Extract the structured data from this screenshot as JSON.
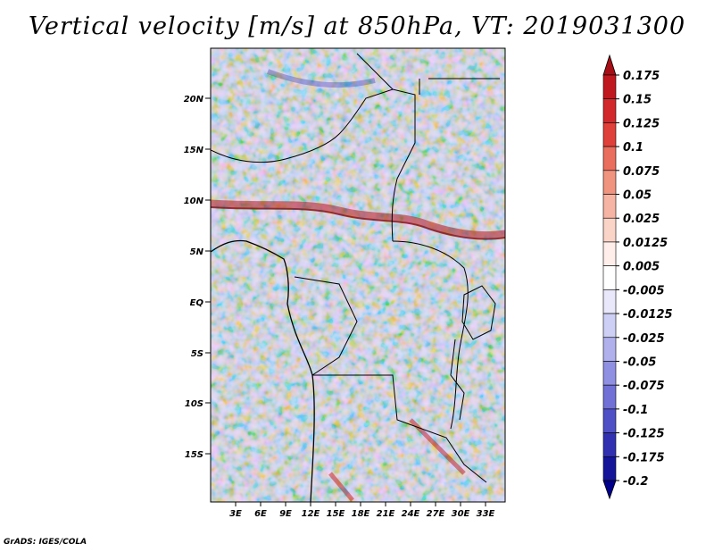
{
  "title": "Vertical velocity [m/s] at 850hPa, VT: 2019031300",
  "footer": "GrADS: IGES/COLA",
  "lat_labels": [
    "20N",
    "15N",
    "10N",
    "5N",
    "EQ",
    "5S",
    "10S",
    "15S"
  ],
  "lon_labels": [
    "3E",
    "6E",
    "9E",
    "12E",
    "15E",
    "18E",
    "21E",
    "24E",
    "27E",
    "30E",
    "33E"
  ],
  "colorbar": {
    "levels": [
      "0.175",
      "0.15",
      "0.125",
      "0.1",
      "0.075",
      "0.05",
      "0.025",
      "0.0125",
      "0.005",
      "-0.005",
      "-0.0125",
      "-0.025",
      "-0.05",
      "-0.075",
      "-0.1",
      "-0.125",
      "-0.175",
      "-0.2"
    ],
    "colors": [
      "#a50f15",
      "#c0181f",
      "#d2282c",
      "#e0403a",
      "#e96e5e",
      "#f0947f",
      "#f6b5a4",
      "#fbd4c8",
      "#ffeeea",
      "#ffffff",
      "#e8e8fa",
      "#cdd0f4",
      "#b0b0ec",
      "#9090e2",
      "#7070d6",
      "#5050c6",
      "#3030b0",
      "#15159a",
      "#00008b"
    ]
  },
  "chart_data": {
    "type": "heatmap",
    "title": "Vertical velocity [m/s] at 850hPa, VT: 2019031300",
    "variable": "Vertical velocity",
    "units": "m/s",
    "level": "850hPa",
    "valid_time": "2019031300",
    "lat_range": [
      "19S",
      "24N"
    ],
    "lon_range": [
      "0E",
      "35E"
    ]
  }
}
